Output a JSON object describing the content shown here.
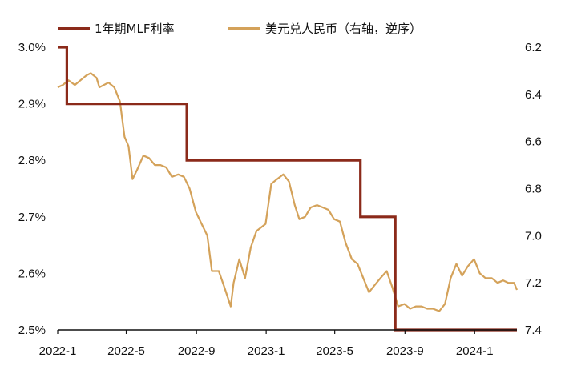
{
  "chart_data": {
    "type": "line",
    "legend": {
      "position": "top"
    },
    "colors": {
      "mlf": "#8b2a1a",
      "fx": "#d4a25a",
      "axis": "#111111"
    },
    "x_axis": {
      "start": "2022-01-01",
      "end": "2024-03-15",
      "tick_labels": [
        "2022-1",
        "2022-5",
        "2022-9",
        "2023-1",
        "2023-5",
        "2023-9",
        "2024-1"
      ],
      "tick_dates": [
        "2022-01-01",
        "2022-05-01",
        "2022-09-01",
        "2023-01-01",
        "2023-05-01",
        "2023-09-01",
        "2024-01-01"
      ]
    },
    "y_left": {
      "ylim": [
        2.5,
        3.0
      ],
      "tick_values": [
        2.5,
        2.6,
        2.7,
        2.8,
        2.9,
        3.0
      ],
      "tick_labels": [
        "2.5%",
        "2.6%",
        "2.7%",
        "2.8%",
        "2.9%",
        "3.0%"
      ]
    },
    "y_right": {
      "ylim": [
        6.2,
        7.4
      ],
      "inverted": true,
      "tick_values": [
        6.2,
        6.4,
        6.6,
        6.8,
        7.0,
        7.2,
        7.4
      ],
      "tick_labels": [
        "6.2",
        "6.4",
        "6.6",
        "6.8",
        "7.0",
        "7.2",
        "7.4"
      ]
    },
    "series": [
      {
        "name": "1年期MLF利率",
        "axis": "left",
        "step": true,
        "points": [
          [
            "2022-01-01",
            3.0
          ],
          [
            "2022-01-17",
            2.9
          ],
          [
            "2022-08-15",
            2.8
          ],
          [
            "2023-06-15",
            2.7
          ],
          [
            "2023-08-15",
            2.5
          ],
          [
            "2024-03-15",
            2.5
          ]
        ]
      },
      {
        "name": "美元兑人民币（右轴，逆序）",
        "axis": "right",
        "step": false,
        "points": [
          [
            "2022-01-01",
            6.37
          ],
          [
            "2022-01-10",
            6.36
          ],
          [
            "2022-01-20",
            6.34
          ],
          [
            "2022-01-31",
            6.36
          ],
          [
            "2022-02-10",
            6.34
          ],
          [
            "2022-02-20",
            6.32
          ],
          [
            "2022-02-28",
            6.31
          ],
          [
            "2022-03-10",
            6.33
          ],
          [
            "2022-03-15",
            6.37
          ],
          [
            "2022-03-31",
            6.35
          ],
          [
            "2022-04-10",
            6.37
          ],
          [
            "2022-04-20",
            6.43
          ],
          [
            "2022-04-28",
            6.58
          ],
          [
            "2022-05-05",
            6.62
          ],
          [
            "2022-05-12",
            6.76
          ],
          [
            "2022-05-20",
            6.72
          ],
          [
            "2022-05-31",
            6.66
          ],
          [
            "2022-06-10",
            6.67
          ],
          [
            "2022-06-20",
            6.7
          ],
          [
            "2022-06-30",
            6.7
          ],
          [
            "2022-07-10",
            6.71
          ],
          [
            "2022-07-20",
            6.75
          ],
          [
            "2022-07-31",
            6.74
          ],
          [
            "2022-08-10",
            6.75
          ],
          [
            "2022-08-20",
            6.8
          ],
          [
            "2022-08-31",
            6.9
          ],
          [
            "2022-09-10",
            6.95
          ],
          [
            "2022-09-20",
            7.0
          ],
          [
            "2022-09-28",
            7.15
          ],
          [
            "2022-10-10",
            7.15
          ],
          [
            "2022-10-20",
            7.22
          ],
          [
            "2022-10-31",
            7.3
          ],
          [
            "2022-11-05",
            7.2
          ],
          [
            "2022-11-15",
            7.1
          ],
          [
            "2022-11-25",
            7.18
          ],
          [
            "2022-12-05",
            7.05
          ],
          [
            "2022-12-15",
            6.98
          ],
          [
            "2022-12-31",
            6.95
          ],
          [
            "2023-01-10",
            6.78
          ],
          [
            "2023-01-20",
            6.76
          ],
          [
            "2023-01-31",
            6.74
          ],
          [
            "2023-02-10",
            6.77
          ],
          [
            "2023-02-20",
            6.87
          ],
          [
            "2023-02-28",
            6.93
          ],
          [
            "2023-03-10",
            6.92
          ],
          [
            "2023-03-20",
            6.88
          ],
          [
            "2023-03-31",
            6.87
          ],
          [
            "2023-04-10",
            6.88
          ],
          [
            "2023-04-20",
            6.89
          ],
          [
            "2023-04-30",
            6.93
          ],
          [
            "2023-05-10",
            6.94
          ],
          [
            "2023-05-20",
            7.03
          ],
          [
            "2023-05-31",
            7.1
          ],
          [
            "2023-06-10",
            7.12
          ],
          [
            "2023-06-20",
            7.18
          ],
          [
            "2023-06-30",
            7.24
          ],
          [
            "2023-07-10",
            7.21
          ],
          [
            "2023-07-20",
            7.18
          ],
          [
            "2023-07-31",
            7.15
          ],
          [
            "2023-08-10",
            7.22
          ],
          [
            "2023-08-20",
            7.3
          ],
          [
            "2023-08-31",
            7.29
          ],
          [
            "2023-09-10",
            7.31
          ],
          [
            "2023-09-20",
            7.3
          ],
          [
            "2023-09-30",
            7.3
          ],
          [
            "2023-10-10",
            7.31
          ],
          [
            "2023-10-20",
            7.31
          ],
          [
            "2023-10-31",
            7.32
          ],
          [
            "2023-11-10",
            7.29
          ],
          [
            "2023-11-20",
            7.18
          ],
          [
            "2023-11-30",
            7.12
          ],
          [
            "2023-12-10",
            7.17
          ],
          [
            "2023-12-20",
            7.13
          ],
          [
            "2023-12-31",
            7.1
          ],
          [
            "2024-01-10",
            7.16
          ],
          [
            "2024-01-20",
            7.18
          ],
          [
            "2024-01-31",
            7.18
          ],
          [
            "2024-02-10",
            7.2
          ],
          [
            "2024-02-20",
            7.19
          ],
          [
            "2024-02-29",
            7.2
          ],
          [
            "2024-03-10",
            7.2
          ],
          [
            "2024-03-15",
            7.23
          ]
        ]
      }
    ]
  }
}
